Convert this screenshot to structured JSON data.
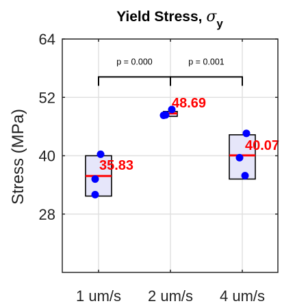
{
  "chart_data": {
    "type": "box",
    "title": "Yield Stress, ",
    "title_symbol": "σ",
    "title_subscript": "y",
    "ylabel": "Stress (MPa)",
    "xlabel": "",
    "ylim": [
      16,
      64
    ],
    "yticks": [
      28,
      40,
      52,
      64
    ],
    "grid": true,
    "categories": [
      "1 um/s",
      "2 um/s",
      "4 um/s"
    ],
    "boxes": [
      {
        "category": "1 um/s",
        "low": 31.7,
        "high": 40.0,
        "mean": 35.83,
        "mean_label": "35.83",
        "points": [
          40.3,
          35.2,
          32.0
        ]
      },
      {
        "category": "2 um/s",
        "low": 48.1,
        "high": 49.1,
        "mean": 48.69,
        "mean_label": "48.69",
        "points": [
          48.4,
          49.5,
          48.3
        ]
      },
      {
        "category": "4 um/s",
        "low": 35.2,
        "high": 44.3,
        "mean": 40.07,
        "mean_label": "40.07",
        "points": [
          44.6,
          39.6,
          35.9
        ]
      }
    ],
    "comparisons": [
      {
        "from": 0,
        "to": 1,
        "label": "p = 0.000"
      },
      {
        "from": 1,
        "to": 2,
        "label": "p = 0.001"
      }
    ],
    "bracket_y": 56.2,
    "colors": {
      "box_fill": "#e6e6fa",
      "box_edge": "#000000",
      "mean_line": "#ff0000",
      "points": "#0000ff",
      "mean_text": "#ff0000",
      "grid": "#e0e0e0"
    }
  }
}
